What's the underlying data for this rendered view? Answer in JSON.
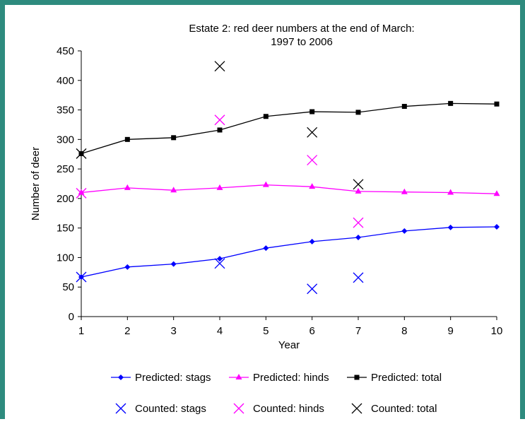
{
  "chart_data": {
    "type": "line",
    "title": "Estate 2: red deer numbers at the end of March:",
    "subtitle": "1997 to 2006",
    "xlabel": "Year",
    "ylabel": "Number of deer",
    "x": [
      1,
      2,
      3,
      4,
      5,
      6,
      7,
      8,
      9,
      10
    ],
    "xlim": [
      1,
      10
    ],
    "ylim": [
      0,
      450
    ],
    "yticks": [
      0,
      50,
      100,
      150,
      200,
      250,
      300,
      350,
      400,
      450
    ],
    "grid": false,
    "legend": "bottom",
    "series": [
      {
        "name": "Predicted: stags",
        "kind": "line",
        "marker": "diamond",
        "color": "#0000ff",
        "points": [
          [
            1,
            67
          ],
          [
            2,
            84
          ],
          [
            3,
            89
          ],
          [
            4,
            98
          ],
          [
            5,
            116
          ],
          [
            6,
            127
          ],
          [
            7,
            134
          ],
          [
            8,
            145
          ],
          [
            9,
            151
          ],
          [
            10,
            152
          ]
        ]
      },
      {
        "name": "Predicted: hinds",
        "kind": "line",
        "marker": "triangle",
        "color": "#ff00ff",
        "points": [
          [
            1,
            210
          ],
          [
            2,
            218
          ],
          [
            3,
            214
          ],
          [
            4,
            218
          ],
          [
            5,
            223
          ],
          [
            6,
            220
          ],
          [
            7,
            212
          ],
          [
            8,
            211
          ],
          [
            9,
            210
          ],
          [
            10,
            208
          ]
        ]
      },
      {
        "name": "Predicted: total",
        "kind": "line",
        "marker": "square",
        "color": "#000000",
        "points": [
          [
            1,
            276
          ],
          [
            2,
            300
          ],
          [
            3,
            303
          ],
          [
            4,
            316
          ],
          [
            5,
            339
          ],
          [
            6,
            347
          ],
          [
            7,
            346
          ],
          [
            8,
            356
          ],
          [
            9,
            361
          ],
          [
            10,
            360
          ]
        ]
      },
      {
        "name": "Counted: stags",
        "kind": "scatter",
        "marker": "x",
        "color": "#0000ff",
        "points": [
          [
            1,
            67
          ],
          [
            4,
            90
          ],
          [
            6,
            47
          ],
          [
            7,
            66
          ]
        ]
      },
      {
        "name": "Counted: hinds",
        "kind": "scatter",
        "marker": "x",
        "color": "#ff00ff",
        "points": [
          [
            1,
            209
          ],
          [
            4,
            333
          ],
          [
            6,
            265
          ],
          [
            7,
            159
          ]
        ]
      },
      {
        "name": "Counted: total",
        "kind": "scatter",
        "marker": "x",
        "color": "#000000",
        "points": [
          [
            1,
            276
          ],
          [
            4,
            424
          ],
          [
            6,
            312
          ],
          [
            7,
            224
          ]
        ]
      }
    ]
  }
}
